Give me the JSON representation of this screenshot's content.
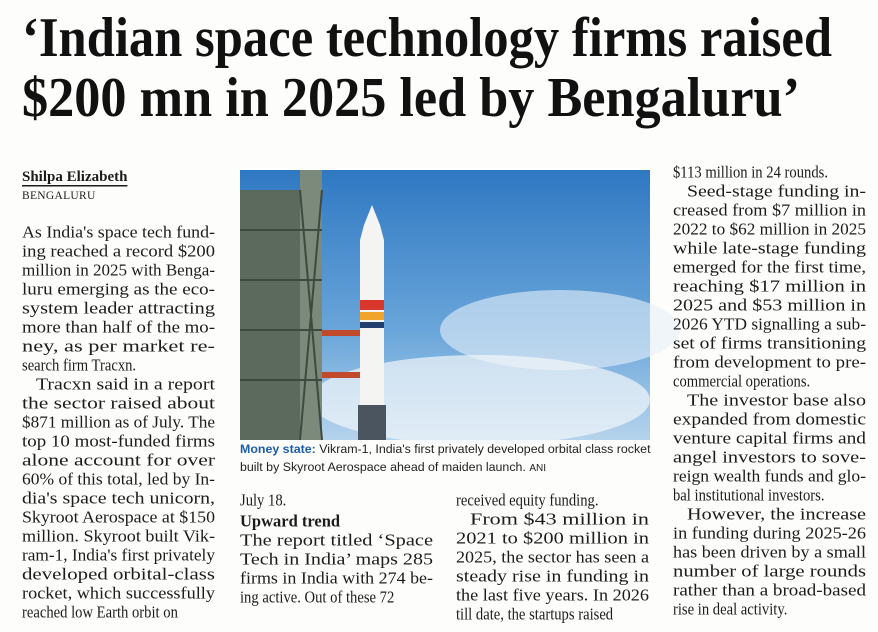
{
  "headline": [
    "‘Indian space technology firms raised",
    "$200 mn in 2025 led by Bengaluru’"
  ],
  "byline": {
    "author": "Shilpa Elizabeth",
    "location": "BENGALURU"
  },
  "photo": {
    "caption": {
      "label": "Money state:",
      "text": "Vikram-1, India's first privately developed orbital class rocket built by Skyroot Aerospace ahead of maiden launch.",
      "credit": "ANI"
    }
  },
  "columns": [
    [
      {
        "lines": [
          "As India's space tech fund-",
          "ing reached a record $200",
          "million in 2025 with Benga-",
          "luru emerging as the eco-",
          "system leader attracting",
          "more than half of the mo-",
          "ney, as per market re-",
          "search firm Tracxn."
        ]
      },
      {
        "lines": [
          "Tracxn said in a report",
          "the sector raised about",
          "$871 million as of July. The",
          "top 10 most-funded firms",
          "alone account for over",
          "60% of this total, led by In-",
          "dia's space tech unicorn,",
          "Skyroot Aerospace at $150",
          "million. Skyroot built Vik-",
          "ram-1, India's first privately",
          "developed orbital-class",
          "rocket, which successfully",
          "reached low Earth orbit on"
        ]
      }
    ],
    [
      {
        "lines": [
          "July 18."
        ]
      },
      {
        "subhead": "Upward trend"
      },
      {
        "lines": [
          "The report titled ‘Space",
          "Tech in India’ maps 285",
          "firms in India with 274 be-",
          "ing active. Out of these 72"
        ]
      }
    ],
    [
      {
        "lines": [
          "received equity funding."
        ]
      },
      {
        "lines": [
          "From $43 million in",
          "2021 to $200 million in",
          "2025, the sector has seen a",
          "steady rise in funding in",
          "the last five years. In 2026",
          "till date, the startups raised"
        ]
      }
    ],
    [
      {
        "lines": [
          "$113 million in 24 rounds."
        ]
      },
      {
        "lines": [
          "Seed-stage funding in-",
          "creased from $7 million in",
          "2022 to $62 million in 2025",
          "while late-stage funding",
          "emerged for the first time,",
          "reaching $17 million in",
          "2025 and $53 million in",
          "2026 YTD signalling a sub-",
          "set of firms transitioning",
          "from development to pre-",
          "commercial operations."
        ]
      },
      {
        "lines": [
          "The investor base also",
          "expanded from domestic",
          "venture capital firms and",
          "angel investors to sove-",
          "reign wealth funds and glo-",
          "bal institutional investors."
        ]
      },
      {
        "lines": [
          "However, the increase",
          "in funding during 2025-26",
          "has been driven by a small",
          "number of large rounds",
          "rather than a broad-based",
          "rise in deal activity."
        ]
      }
    ]
  ]
}
